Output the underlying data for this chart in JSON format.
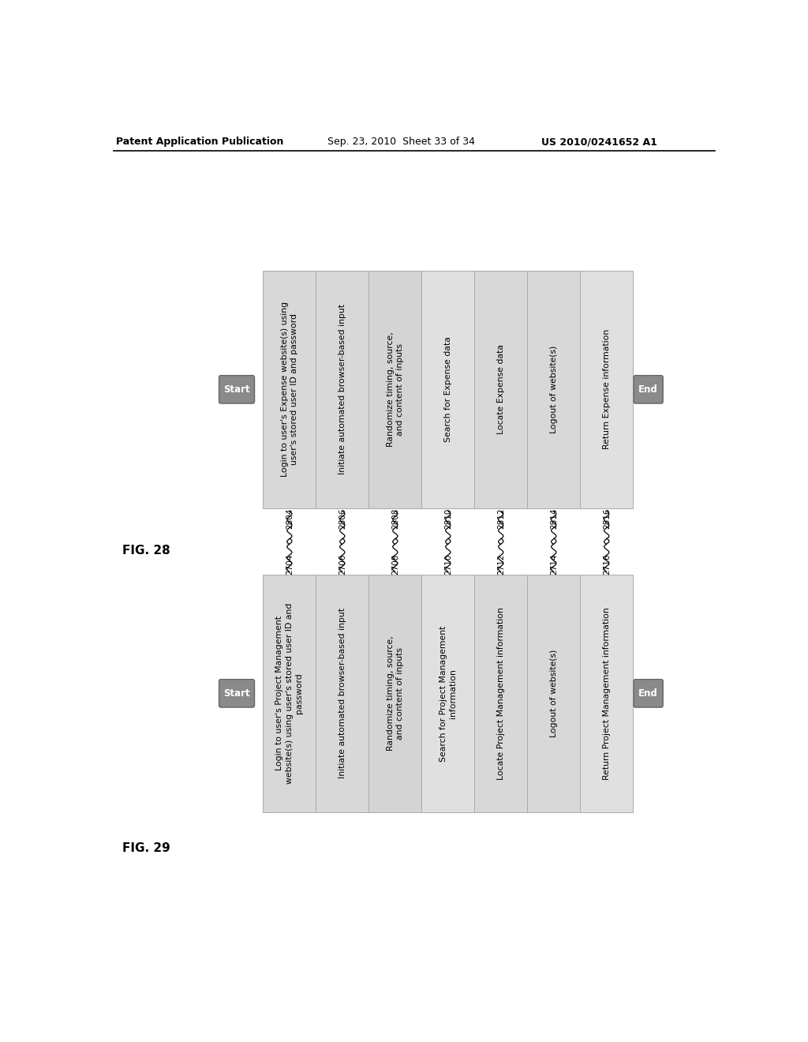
{
  "header_left": "Patent Application Publication",
  "header_mid": "Sep. 23, 2010  Sheet 33 of 34",
  "header_right": "US 2010/0241652 A1",
  "fig28_label": "FIG. 28",
  "fig29_label": "FIG. 29",
  "fig28_numbers": [
    "2704",
    "2706",
    "2708",
    "2710",
    "2712",
    "2714",
    "2716"
  ],
  "fig29_numbers": [
    "2804",
    "2806",
    "2808",
    "2810",
    "2812",
    "2814",
    "2816"
  ],
  "fig28_bars": [
    "Login to user's Expense website(s) using\nuser's stored user ID and password",
    "Initiate automated browser-based input",
    "Randomize timing, source,\nand content of inputs",
    "Search for Expense data",
    "Locate Expense data",
    "Logout of website(s)",
    "Return Expense information"
  ],
  "fig29_bars": [
    "Login to user's Project Management\nwebsite(s) using user's stored user ID and\npassword",
    "Initiate automated browser-based input",
    "Randomize timing, source,\nand content of inputs",
    "Search for Project Management\ninformation",
    "Locate Project Management information",
    "Logout of website(s)",
    "Return Project Management information"
  ],
  "fig28_bold_first": [
    "Login",
    "Initiate",
    "Randomize",
    "Search",
    "Locate",
    "Logout",
    "Return"
  ],
  "fig29_bold_first": [
    "Login",
    "Initiate",
    "Randomize",
    "Search",
    "Locate",
    "Logout",
    "Return"
  ],
  "background_color": "#ffffff",
  "fig29_numbers_at_top": true,
  "fig28_numbers_at_top": false,
  "bar_colors": [
    "#dcdcdc",
    "#e8e8e8",
    "#d8d8d8",
    "#e0e0e0",
    "#d4d4d4",
    "#e0e0e0",
    "#d8d8d8"
  ],
  "start_color": "#909090",
  "end_color": "#909090"
}
